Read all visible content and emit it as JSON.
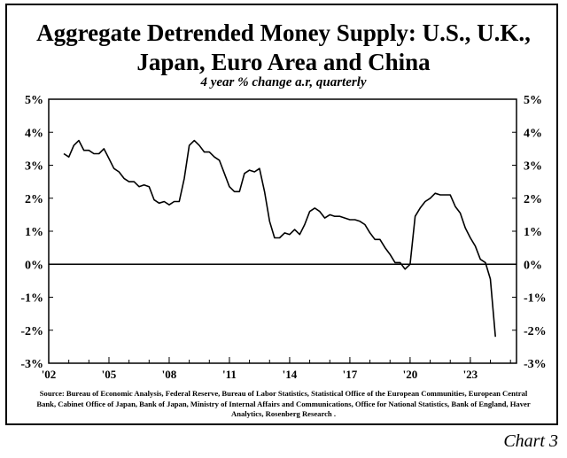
{
  "chart_data": {
    "type": "line",
    "title": "Aggregate Detrended Money Supply: U.S., U.K.,",
    "title_line2": "Japan, Euro Area and China",
    "subtitle": "4 year % change a.r, quarterly",
    "xlabel": "",
    "ylabel": "",
    "xlim": [
      2002.0,
      2025.3
    ],
    "ylim": [
      -3,
      5
    ],
    "y_ticks": [
      "5%",
      "4%",
      "3%",
      "2%",
      "1%",
      "0%",
      "-1%",
      "-2%",
      "-3%"
    ],
    "y_tick_values": [
      5,
      4,
      3,
      2,
      1,
      0,
      -1,
      -2,
      -3
    ],
    "x_ticks": [
      "'02",
      "'05",
      "'08",
      "'11",
      "'14",
      "'17",
      "'20",
      "'23"
    ],
    "x_tick_values": [
      2002,
      2005,
      2008,
      2011,
      2014,
      2017,
      2020,
      2023
    ],
    "grid": false,
    "zero_line": true,
    "series": [
      {
        "color": "#000000",
        "x": [
          2002.75,
          2003.0,
          2003.25,
          2003.5,
          2003.75,
          2004.0,
          2004.25,
          2004.5,
          2004.75,
          2005.0,
          2005.25,
          2005.5,
          2005.75,
          2006.0,
          2006.25,
          2006.5,
          2006.75,
          2007.0,
          2007.25,
          2007.5,
          2007.75,
          2008.0,
          2008.25,
          2008.5,
          2008.75,
          2009.0,
          2009.25,
          2009.5,
          2009.75,
          2010.0,
          2010.25,
          2010.5,
          2010.75,
          2011.0,
          2011.25,
          2011.5,
          2011.75,
          2012.0,
          2012.25,
          2012.5,
          2012.75,
          2013.0,
          2013.25,
          2013.5,
          2013.75,
          2014.0,
          2014.25,
          2014.5,
          2014.75,
          2015.0,
          2015.25,
          2015.5,
          2015.75,
          2016.0,
          2016.25,
          2016.5,
          2016.75,
          2017.0,
          2017.25,
          2017.5,
          2017.75,
          2018.0,
          2018.25,
          2018.5,
          2018.75,
          2019.0,
          2019.25,
          2019.5,
          2019.75,
          2020.0,
          2020.25,
          2020.5,
          2020.75,
          2021.0,
          2021.25,
          2021.5,
          2021.75,
          2022.0,
          2022.25,
          2022.5,
          2022.75,
          2023.0,
          2023.25,
          2023.5,
          2023.75,
          2024.0,
          2024.25
        ],
        "y": [
          3.35,
          3.25,
          3.6,
          3.75,
          3.45,
          3.45,
          3.35,
          3.35,
          3.5,
          3.2,
          2.9,
          2.8,
          2.6,
          2.5,
          2.5,
          2.35,
          2.4,
          2.35,
          1.95,
          1.85,
          1.9,
          1.8,
          1.9,
          1.9,
          2.6,
          3.6,
          3.75,
          3.6,
          3.4,
          3.4,
          3.25,
          3.15,
          2.75,
          2.35,
          2.2,
          2.2,
          2.75,
          2.85,
          2.8,
          2.9,
          2.2,
          1.3,
          0.8,
          0.8,
          0.95,
          0.9,
          1.05,
          0.9,
          1.2,
          1.6,
          1.7,
          1.6,
          1.4,
          1.5,
          1.45,
          1.45,
          1.4,
          1.35,
          1.35,
          1.3,
          1.2,
          0.95,
          0.75,
          0.75,
          0.5,
          0.3,
          0.05,
          0.05,
          -0.15,
          0.0,
          1.45,
          1.7,
          1.9,
          2.0,
          2.15,
          2.1,
          2.1,
          2.1,
          1.75,
          1.55,
          1.1,
          0.8,
          0.55,
          0.15,
          0.05,
          -0.45,
          -2.2
        ]
      }
    ]
  },
  "source_text": "Source: Bureau of Economic Analysis, Federal Reserve, Bureau of Labor Statistics, Statistical Office of the European Communities, European Central Bank, Cabinet Office of Japan, Bank of Japan, Ministry of Internal Affairs and Communications, Office for National Statistics, Bank of England, Haver Analytics, Rosenberg Research .",
  "chart_tag": "Chart 3"
}
